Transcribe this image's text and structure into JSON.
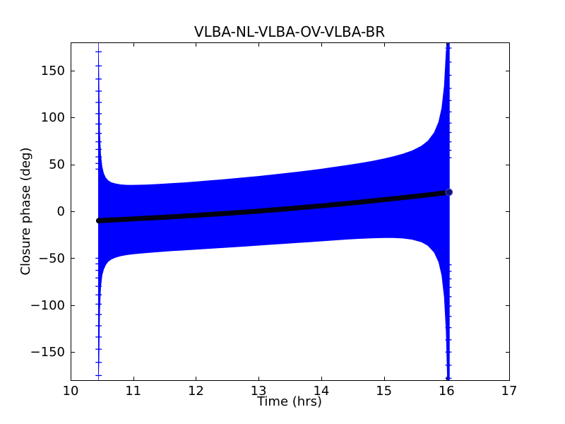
{
  "chart_data": {
    "type": "line",
    "title": "VLBA-NL-VLBA-OV-VLBA-BR",
    "xlabel": "Time (hrs)",
    "ylabel": "Closure phase (deg)",
    "xlim": [
      10,
      17
    ],
    "ylim": [
      -180,
      180
    ],
    "grid": false,
    "legend": null,
    "background": "#ffffff",
    "xticks": {
      "values": [
        10,
        11,
        12,
        13,
        14,
        15,
        16,
        17
      ],
      "labels": [
        "10",
        "11",
        "12",
        "13",
        "14",
        "15",
        "16",
        "17"
      ]
    },
    "yticks": {
      "values": [
        -150,
        -100,
        -50,
        0,
        50,
        100,
        150
      ],
      "labels": [
        "−150",
        "−100",
        "−50",
        "0",
        "50",
        "100",
        "150"
      ]
    },
    "series": [
      {
        "name": "closure-phase-samples-envelope",
        "type": "band",
        "color": "#0000ff",
        "x": [
          10.44,
          10.448,
          10.456,
          10.468,
          10.484,
          10.505,
          10.53,
          10.56,
          10.6,
          10.65,
          10.72,
          10.8,
          10.9,
          11.0,
          11.2,
          11.4,
          11.6,
          11.8,
          12.0,
          12.2,
          12.4,
          12.6,
          12.8,
          13.0,
          13.2,
          13.4,
          13.6,
          13.8,
          14.0,
          14.2,
          14.4,
          14.6,
          14.8,
          15.0,
          15.15,
          15.3,
          15.45,
          15.6,
          15.7,
          15.8,
          15.87,
          15.92,
          15.96,
          15.99,
          16.01,
          16.025,
          16.05
        ],
        "upper": [
          180,
          180,
          136,
          84,
          60.7,
          47.7,
          40.6,
          36.1,
          33,
          30.9,
          29.5,
          28.6,
          28.2,
          28.2,
          28.5,
          29.1,
          29.9,
          30.7,
          31.7,
          32.8,
          33.9,
          35.1,
          36.3,
          37.6,
          39,
          40.5,
          42,
          43.6,
          45.3,
          47.2,
          49.1,
          51.2,
          53.5,
          56.2,
          58.5,
          61.3,
          64.8,
          69.9,
          75.1,
          83.9,
          95.2,
          110,
          133.4,
          170.5,
          180,
          180,
          180
        ],
        "lower": [
          -180,
          -180,
          -158,
          -105,
          -81.2,
          -68.2,
          -62.1,
          -57.4,
          -53.8,
          -51.3,
          -49.3,
          -47.8,
          -46.6,
          -45.8,
          -44.5,
          -43.5,
          -42.5,
          -41.7,
          -40.8,
          -40,
          -39.2,
          -38.3,
          -37.4,
          -36.5,
          -35.6,
          -34.7,
          -33.8,
          -32.9,
          -32,
          -31.1,
          -30.1,
          -29.4,
          -28.8,
          -28.5,
          -28.5,
          -28.9,
          -30.2,
          -33,
          -36.7,
          -43.8,
          -54,
          -68.2,
          -91,
          -127.7,
          -180,
          -180,
          -180
        ]
      },
      {
        "name": "model-closure-phase",
        "type": "line",
        "color": "#020210",
        "line_width": 7,
        "x": [
          10.45,
          10.75,
          11.0,
          11.5,
          12.0,
          12.5,
          13.0,
          13.5,
          14.0,
          14.5,
          15.0,
          15.5,
          15.8,
          16.04
        ],
        "y": [
          -10,
          -9.0,
          -8.1,
          -6.3,
          -4.4,
          -2.2,
          0.2,
          2.9,
          5.8,
          9.0,
          12.4,
          16.0,
          18.2,
          20.3
        ]
      }
    ],
    "error_bar_caps": {
      "color": "#0000ff",
      "half_width_hrs": 0.05,
      "groups": [
        {
          "t": 10.447,
          "degs": [
            170,
            155,
            141,
            128,
            116,
            104,
            93,
            83,
            74,
            66,
            58,
            51,
            45,
            -175,
            -161,
            -147,
            -134,
            -122,
            -110,
            -99,
            -89,
            -80,
            -71,
            -63,
            -56,
            -50
          ]
        },
        {
          "t": 16.03,
          "degs": [
            174,
            159,
            145,
            131,
            118,
            106,
            94,
            84,
            74,
            65,
            57,
            -178,
            -164,
            -150,
            -137,
            -124,
            -112,
            -101,
            -91,
            -81,
            -72,
            -64,
            -57
          ]
        }
      ]
    },
    "end_marker": {
      "t": 16.04,
      "deg": 20.3,
      "fill": "#10106a",
      "stroke": "#3434d6"
    }
  }
}
